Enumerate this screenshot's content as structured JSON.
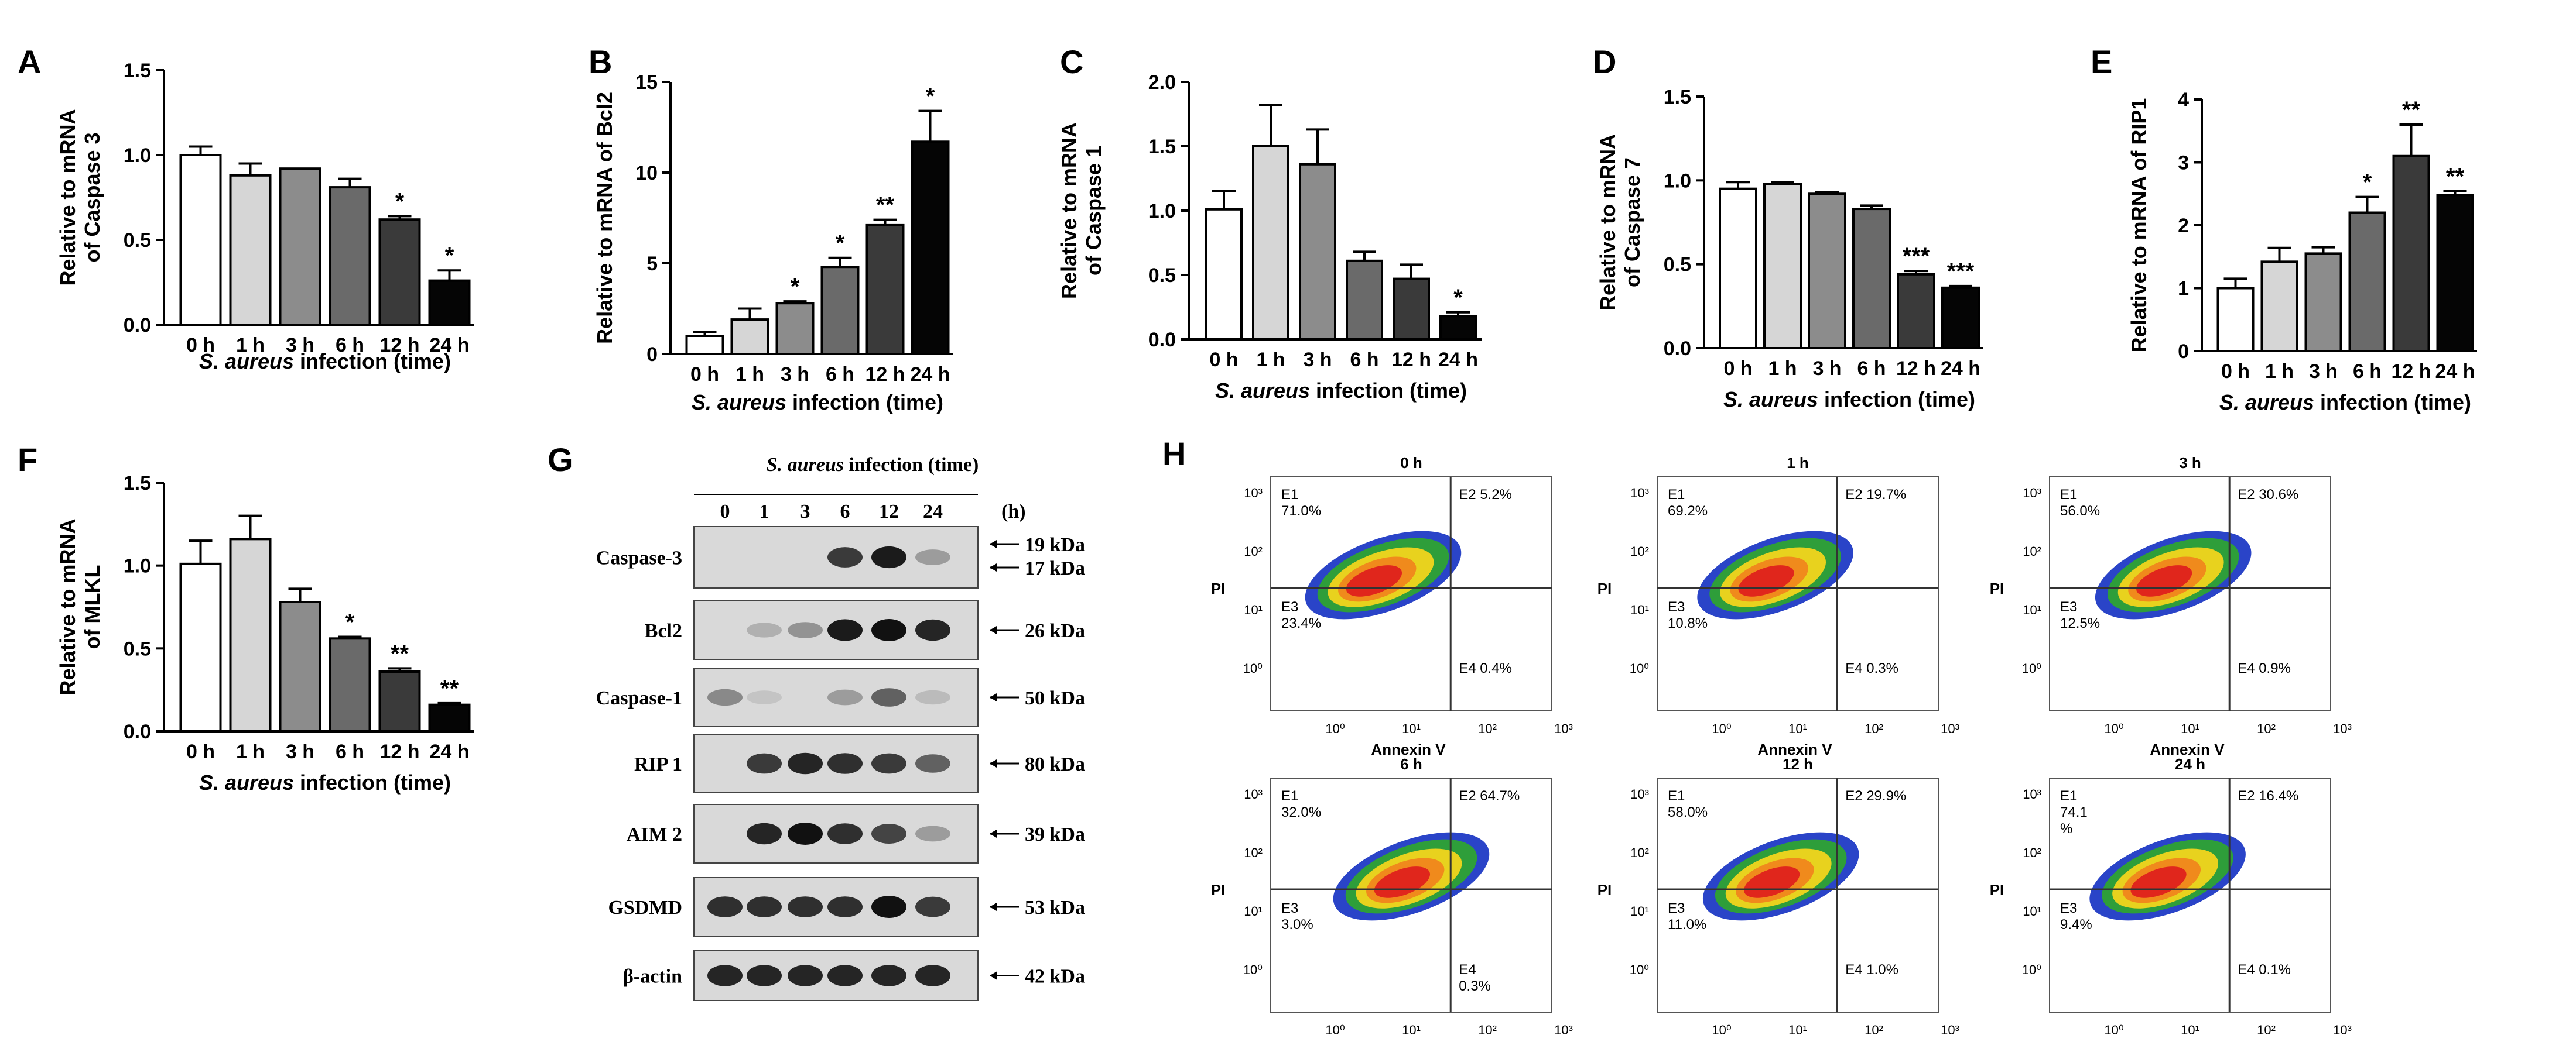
{
  "figure_note": "",
  "chart_data": [
    {
      "panel": "A",
      "type": "bar",
      "categories": [
        "0 h",
        "1 h",
        "3 h",
        "6 h",
        "12 h",
        "24 h"
      ],
      "values": [
        1.0,
        0.88,
        0.92,
        0.81,
        0.62,
        0.26
      ],
      "errors": [
        0.05,
        0.07,
        0.0,
        0.05,
        0.02,
        0.06
      ],
      "significance": [
        "",
        "",
        "",
        "",
        "*",
        "*"
      ],
      "ylabel": "Relative to mRNA of Caspase 3",
      "xlabel_species": "S. aureus",
      "xlabel_rest": " infection (time)",
      "ylim": [
        0,
        1.5
      ],
      "yticks": [
        "0.0",
        "0.5",
        "1.0",
        "1.5"
      ]
    },
    {
      "panel": "B",
      "type": "bar",
      "categories": [
        "0 h",
        "1 h",
        "3 h",
        "6 h",
        "12 h",
        "24 h"
      ],
      "values": [
        1.0,
        1.9,
        2.8,
        4.8,
        7.1,
        11.7
      ],
      "errors": [
        0.2,
        0.6,
        0.1,
        0.5,
        0.3,
        1.7
      ],
      "significance": [
        "",
        "",
        "*",
        "*",
        "**",
        "*"
      ],
      "ylabel": "Relative to mRNA of Bcl2",
      "xlabel_species": "S. aureus",
      "xlabel_rest": " infection (time)",
      "ylim": [
        0,
        15
      ],
      "yticks": [
        "0",
        "5",
        "10",
        "15"
      ]
    },
    {
      "panel": "C",
      "type": "bar",
      "categories": [
        "0 h",
        "1 h",
        "3 h",
        "6 h",
        "12 h",
        "24 h"
      ],
      "values": [
        1.01,
        1.5,
        1.36,
        0.61,
        0.47,
        0.18
      ],
      "errors": [
        0.14,
        0.32,
        0.27,
        0.07,
        0.11,
        0.03
      ],
      "significance": [
        "",
        "",
        "",
        "",
        "",
        "*"
      ],
      "ylabel": "Relative to mRNA of Caspase 1",
      "xlabel_species": "S. aureus",
      "xlabel_rest": " infection (time)",
      "ylim": [
        0,
        2.0
      ],
      "yticks": [
        "0.0",
        "0.5",
        "1.0",
        "1.5",
        "2.0"
      ]
    },
    {
      "panel": "D",
      "type": "bar",
      "categories": [
        "0 h",
        "1 h",
        "3 h",
        "6 h",
        "12 h",
        "24 h"
      ],
      "values": [
        0.95,
        0.98,
        0.92,
        0.83,
        0.44,
        0.36
      ],
      "errors": [
        0.04,
        0.01,
        0.01,
        0.02,
        0.02,
        0.01
      ],
      "significance": [
        "",
        "",
        "",
        "",
        "***",
        "***"
      ],
      "ylabel": "Relative to mRNA of Caspase 7",
      "xlabel_species": "S. aureus",
      "xlabel_rest": " infection (time)",
      "ylim": [
        0,
        1.5
      ],
      "yticks": [
        "0.0",
        "0.5",
        "1.0",
        "1.5"
      ]
    },
    {
      "panel": "E",
      "type": "bar",
      "categories": [
        "0 h",
        "1 h",
        "3 h",
        "6 h",
        "12 h",
        "24 h"
      ],
      "values": [
        1.0,
        1.42,
        1.55,
        2.2,
        3.1,
        2.48
      ],
      "errors": [
        0.15,
        0.22,
        0.1,
        0.25,
        0.5,
        0.06
      ],
      "significance": [
        "",
        "",
        "",
        "*",
        "**",
        "**"
      ],
      "ylabel": "Relative to mRNA of RIP1",
      "xlabel_species": "S. aureus",
      "xlabel_rest": " infection (time)",
      "ylim": [
        0,
        4
      ],
      "yticks": [
        "0",
        "1",
        "2",
        "3",
        "4"
      ]
    },
    {
      "panel": "F",
      "type": "bar",
      "categories": [
        "0 h",
        "1 h",
        "3 h",
        "6 h",
        "12 h",
        "24 h"
      ],
      "values": [
        1.01,
        1.16,
        0.78,
        0.56,
        0.36,
        0.16
      ],
      "errors": [
        0.14,
        0.14,
        0.08,
        0.01,
        0.02,
        0.01
      ],
      "significance": [
        "",
        "",
        "",
        "*",
        "**",
        "**"
      ],
      "ylabel": "Relative to mRNA of MLKL",
      "xlabel_species": "S. aureus",
      "xlabel_rest": " infection (time)",
      "ylim": [
        0,
        1.5
      ],
      "yticks": [
        "0.0",
        "0.5",
        "1.0",
        "1.5"
      ]
    }
  ],
  "western_blot": {
    "panel": "G",
    "title_species": "S. aureus",
    "title_rest": " infection (time)",
    "lanes": [
      "0",
      "1",
      "3",
      "6",
      "12",
      "24"
    ],
    "unit": "(h)",
    "rows": [
      {
        "name": "Caspase-3",
        "markers": [
          "19 kDa",
          "17 kDa"
        ],
        "intensity": [
          0.05,
          0.05,
          0.05,
          0.8,
          0.95,
          0.3
        ]
      },
      {
        "name": "Bcl2",
        "markers": [
          "26 kDa"
        ],
        "intensity": [
          0.03,
          0.2,
          0.35,
          0.95,
          1.0,
          0.9
        ]
      },
      {
        "name": "Caspase-1",
        "markers": [
          "50 kDa"
        ],
        "intensity": [
          0.4,
          0.1,
          0.05,
          0.3,
          0.6,
          0.15
        ]
      },
      {
        "name": "RIP 1",
        "markers": [
          "80 kDa"
        ],
        "intensity": [
          0.05,
          0.8,
          0.9,
          0.85,
          0.8,
          0.6
        ]
      },
      {
        "name": "AIM 2",
        "markers": [
          "39 kDa"
        ],
        "intensity": [
          0.05,
          0.9,
          1.0,
          0.85,
          0.75,
          0.3
        ]
      },
      {
        "name": "GSDMD",
        "markers": [
          "53 kDa"
        ],
        "intensity": [
          0.85,
          0.85,
          0.85,
          0.85,
          1.0,
          0.8
        ]
      },
      {
        "name": "β-actin",
        "markers": [
          "42 kDa"
        ],
        "intensity": [
          0.9,
          0.9,
          0.9,
          0.9,
          0.9,
          0.9
        ]
      }
    ]
  },
  "flow_cytometry": {
    "panel": "H",
    "xlabel": "Annexin V",
    "ylabel": "PI",
    "ticks": [
      "10⁰",
      "10¹",
      "10²",
      "10³"
    ],
    "plots": [
      {
        "title": "0 h",
        "E1": [
          "E1",
          "71.0%"
        ],
        "E2": "E2 5.2%",
        "E3": [
          "E3",
          "23.4%"
        ],
        "E4": [
          "E4 0.4%"
        ]
      },
      {
        "title": "1 h",
        "E1": [
          "E1",
          "69.2%"
        ],
        "E2": "E2 19.7%",
        "E3": [
          "E3",
          "10.8%"
        ],
        "E4": [
          "E4 0.3%"
        ]
      },
      {
        "title": "3 h",
        "E1": [
          "E1",
          "56.0%"
        ],
        "E2": "E2 30.6%",
        "E3": [
          "E3",
          "12.5%"
        ],
        "E4": [
          "E4 0.9%"
        ]
      },
      {
        "title": "6 h",
        "E1": [
          "E1",
          "32.0%"
        ],
        "E2": "E2 64.7%",
        "E3": [
          "E3",
          "3.0%"
        ],
        "E4": [
          "E4",
          "0.3%"
        ]
      },
      {
        "title": "12 h",
        "E1": [
          "E1",
          "58.0%"
        ],
        "E2": "E2 29.9%",
        "E3": [
          "E3",
          "11.0%"
        ],
        "E4": [
          "E4 1.0%"
        ]
      },
      {
        "title": "24 h",
        "E1": [
          "E1",
          "74.1",
          "%"
        ],
        "E2": "E2 16.4%",
        "E3": [
          "E3",
          "9.4%"
        ],
        "E4": [
          "E4 0.1%"
        ]
      }
    ]
  },
  "colors": {
    "bars": [
      "#ffffff",
      "#d6d6d6",
      "#8c8c8c",
      "#6a6a6a",
      "#3a3a3a",
      "#050505"
    ],
    "axis": "#000000"
  }
}
